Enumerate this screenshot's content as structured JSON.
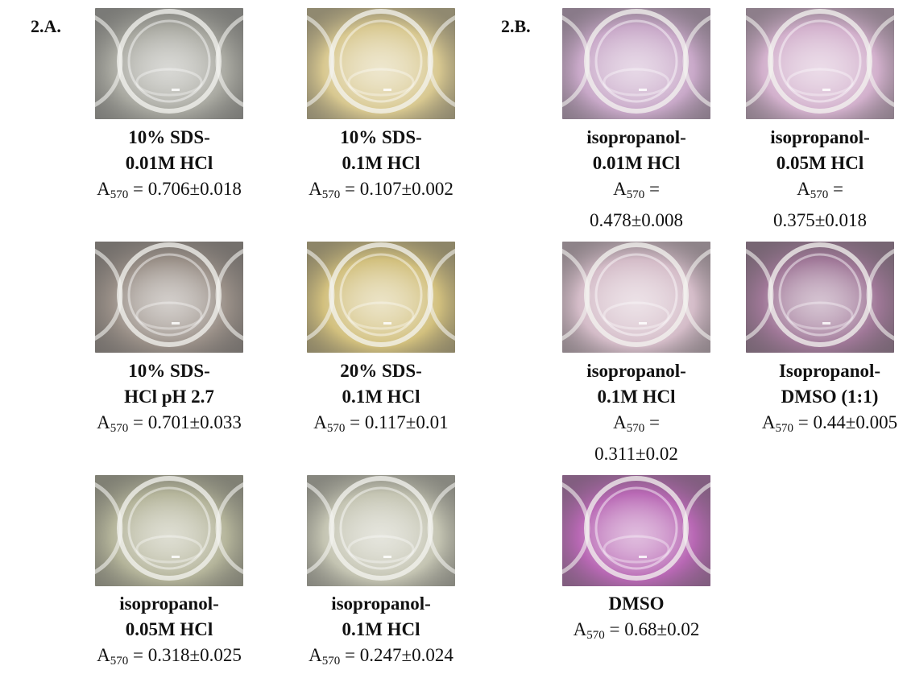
{
  "panels": {
    "a": {
      "label": "2.A."
    },
    "b": {
      "label": "2.B."
    }
  },
  "absorbance": {
    "symbol": "A",
    "subscript": "570",
    "sep": " = "
  },
  "cells": [
    {
      "id": "a1",
      "line1": "10% SDS-",
      "line2": "0.01M HCl",
      "value": "0.706±0.018",
      "tint": "#a8a8a0"
    },
    {
      "id": "a2",
      "line1": "10% SDS-",
      "line2": "0.1M HCl",
      "value": "0.107±0.002",
      "tint": "#d8c890"
    },
    {
      "id": "a3",
      "line1": "10% SDS-",
      "line2": "HCl pH 2.7",
      "value": "0.701±0.033",
      "tint": "#9a9088"
    },
    {
      "id": "a4",
      "line1": "20% SDS-",
      "line2": "0.1M HCl",
      "value": "0.117±0.01",
      "tint": "#d2c07e"
    },
    {
      "id": "a5",
      "line1": "isopropanol-",
      "line2": "0.05M HCl",
      "value": "0.318±0.025",
      "tint": "#b4b49a"
    },
    {
      "id": "a6",
      "line1": "isopropanol-",
      "line2": "0.1M HCl",
      "value": "0.247±0.024",
      "tint": "#c4c4b2"
    },
    {
      "id": "b1",
      "line1": "isopropanol-",
      "line2": "0.01M HCl",
      "value": "0.478±0.008",
      "tint": "#c8a8c8"
    },
    {
      "id": "b2",
      "line1": "isopropanol-",
      "line2": "0.05M HCl",
      "value": "0.375±0.018",
      "tint": "#d2b0cc"
    },
    {
      "id": "b3",
      "line1": "isopropanol-",
      "line2": "0.1M HCl",
      "value": "0.311±0.02",
      "tint": "#d4bcc8"
    },
    {
      "id": "b4",
      "line1": "Isopropanol-",
      "line2": "DMSO (1:1)",
      "value": "0.44±0.005",
      "tint": "#a07898"
    },
    {
      "id": "b5",
      "line1": "DMSO",
      "line2": "",
      "value": "0.68±0.02",
      "tint": "#b868b4"
    }
  ]
}
